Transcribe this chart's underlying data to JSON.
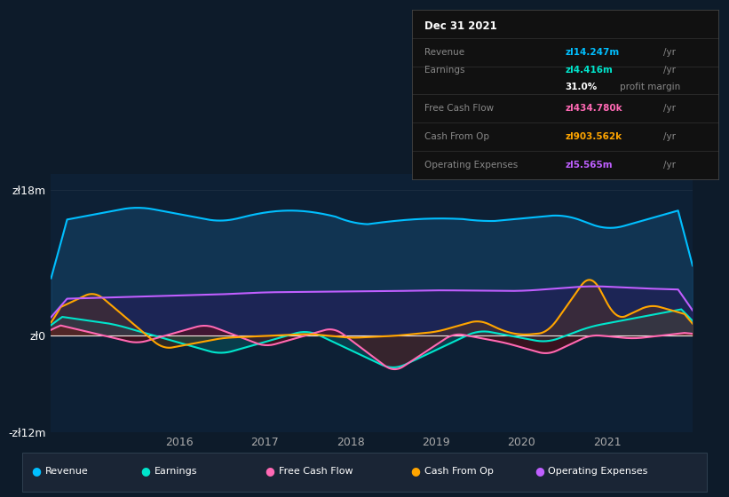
{
  "background_color": "#0d1b2a",
  "chart_bg_color": "#0d2035",
  "ylim": [
    -12,
    20
  ],
  "xlim": [
    2014.5,
    2022.0
  ],
  "x_ticks": [
    2016,
    2017,
    2018,
    2019,
    2020,
    2021
  ],
  "legend": [
    {
      "label": "Revenue",
      "color": "#00bfff"
    },
    {
      "label": "Earnings",
      "color": "#00e5cc"
    },
    {
      "label": "Free Cash Flow",
      "color": "#ff69b4"
    },
    {
      "label": "Cash From Op",
      "color": "#ffa500"
    },
    {
      "label": "Operating Expenses",
      "color": "#bf5fff"
    }
  ],
  "tooltip": {
    "date": "Dec 31 2021",
    "revenue_val": "zl14.247m",
    "revenue_color": "#00bfff",
    "earnings_val": "zl4.416m",
    "earnings_color": "#00e5cc",
    "profit_margin": "31.0%",
    "fcf_val": "zl434.780k",
    "fcf_color": "#ff69b4",
    "cashop_val": "zl903.562k",
    "cashop_color": "#ffa500",
    "opex_val": "zl5.565m",
    "opex_color": "#bf5fff"
  }
}
